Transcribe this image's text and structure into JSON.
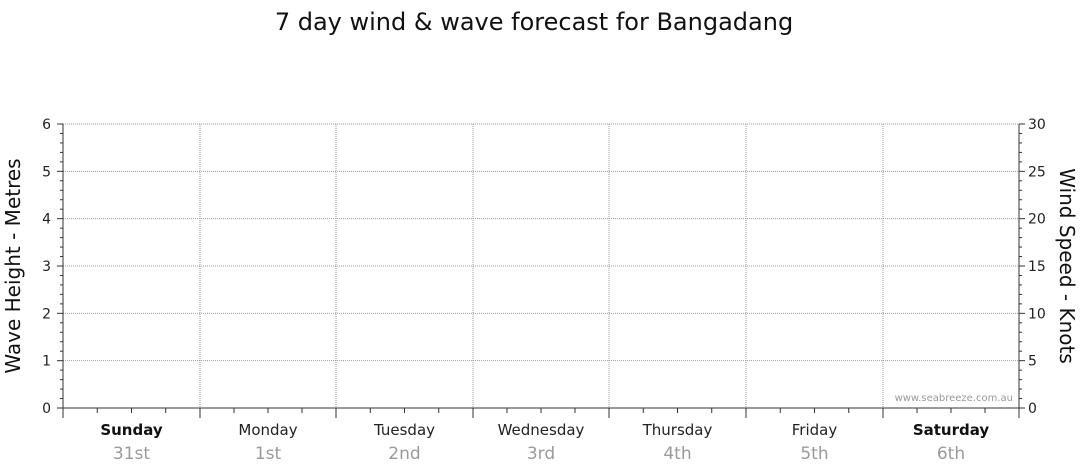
{
  "chart_data": {
    "type": "line",
    "title": "7 day wind & wave forecast for Bangadang",
    "ylabel_left": "Wave Height - Metres",
    "ylabel_right": "Wind Speed - Knots",
    "ylim_left": [
      0,
      6
    ],
    "ylim_right": [
      0,
      30
    ],
    "yticks_left": [
      "0",
      "1",
      "2",
      "3",
      "4",
      "5",
      "6"
    ],
    "yticks_right": [
      "0",
      "5",
      "10",
      "15",
      "20",
      "25",
      "30"
    ],
    "grid": true,
    "days": [
      {
        "name": "Sunday",
        "date": "31st",
        "bold": true
      },
      {
        "name": "Monday",
        "date": "1st",
        "bold": false
      },
      {
        "name": "Tuesday",
        "date": "2nd",
        "bold": false
      },
      {
        "name": "Wednesday",
        "date": "3rd",
        "bold": false
      },
      {
        "name": "Thursday",
        "date": "4th",
        "bold": false
      },
      {
        "name": "Friday",
        "date": "5th",
        "bold": false
      },
      {
        "name": "Saturday",
        "date": "6th",
        "bold": true
      }
    ],
    "series": [],
    "watermark": "www.seabreeze.com.au",
    "colors": {
      "grid": "#999999",
      "axis": "#333333",
      "date_text": "#9a9a9a"
    }
  }
}
